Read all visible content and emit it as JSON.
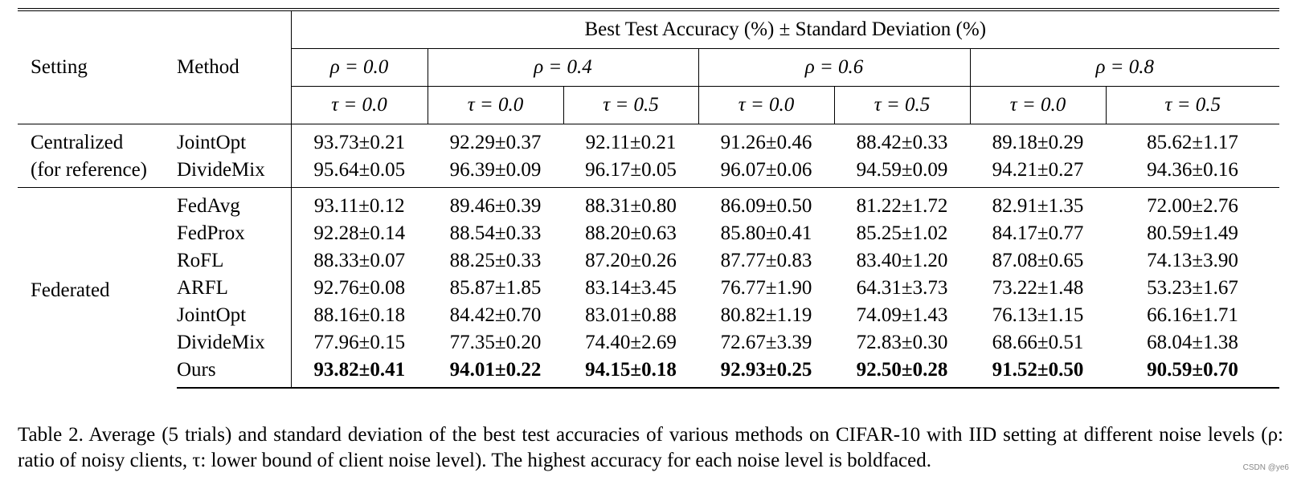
{
  "header": {
    "setting": "Setting",
    "method": "Method",
    "group_title": "Best Test Accuracy (%) ± Standard Deviation (%)",
    "rho_groups": [
      "ρ = 0.0",
      "ρ = 0.4",
      "ρ = 0.6",
      "ρ = 0.8"
    ],
    "tau_cols": [
      "τ = 0.0",
      "τ = 0.0",
      "τ = 0.5",
      "τ = 0.0",
      "τ = 0.5",
      "τ = 0.0",
      "τ = 0.5"
    ]
  },
  "centralized": {
    "label_line1": "Centralized",
    "label_line2": "(for reference)",
    "rows": [
      {
        "method": "JointOpt",
        "values": [
          "93.73±0.21",
          "92.29±0.37",
          "92.11±0.21",
          "91.26±0.46",
          "88.42±0.33",
          "89.18±0.29",
          "85.62±1.17"
        ]
      },
      {
        "method": "DivideMix",
        "values": [
          "95.64±0.05",
          "96.39±0.09",
          "96.17±0.05",
          "96.07±0.06",
          "94.59±0.09",
          "94.21±0.27",
          "94.36±0.16"
        ]
      }
    ]
  },
  "federated": {
    "label": "Federated",
    "rows": [
      {
        "method": "FedAvg",
        "values": [
          "93.11±0.12",
          "89.46±0.39",
          "88.31±0.80",
          "86.09±0.50",
          "81.22±1.72",
          "82.91±1.35",
          "72.00±2.76"
        ]
      },
      {
        "method": "FedProx",
        "values": [
          "92.28±0.14",
          "88.54±0.33",
          "88.20±0.63",
          "85.80±0.41",
          "85.25±1.02",
          "84.17±0.77",
          "80.59±1.49"
        ]
      },
      {
        "method": "RoFL",
        "values": [
          "88.33±0.07",
          "88.25±0.33",
          "87.20±0.26",
          "87.77±0.83",
          "83.40±1.20",
          "87.08±0.65",
          "74.13±3.90"
        ]
      },
      {
        "method": "ARFL",
        "values": [
          "92.76±0.08",
          "85.87±1.85",
          "83.14±3.45",
          "76.77±1.90",
          "64.31±3.73",
          "73.22±1.48",
          "53.23±1.67"
        ]
      },
      {
        "method": "JointOpt",
        "values": [
          "88.16±0.18",
          "84.42±0.70",
          "83.01±0.88",
          "80.82±1.19",
          "74.09±1.43",
          "76.13±1.15",
          "66.16±1.71"
        ]
      },
      {
        "method": "DivideMix",
        "values": [
          "77.96±0.15",
          "77.35±0.20",
          "74.40±2.69",
          "72.67±3.39",
          "72.83±0.30",
          "68.66±0.51",
          "68.04±1.38"
        ]
      },
      {
        "method": "Ours",
        "values": [
          "93.82±0.41",
          "94.01±0.22",
          "94.15±0.18",
          "92.93±0.25",
          "92.50±0.28",
          "91.52±0.50",
          "90.59±0.70"
        ]
      }
    ]
  },
  "caption": "Table 2. Average (5 trials) and standard deviation of the best test accuracies of various methods on CIFAR-10 with IID setting at different noise levels (ρ: ratio of noisy clients, τ: lower bound of client noise level). The highest accuracy for each noise level is boldfaced.",
  "watermark": "CSDN @ye6"
}
